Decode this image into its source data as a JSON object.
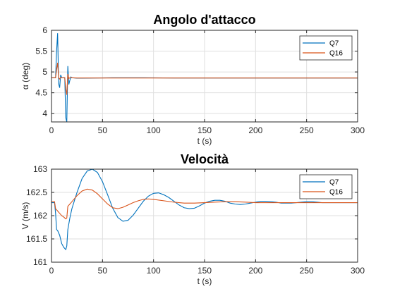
{
  "chart_data": [
    {
      "type": "line",
      "title": "Angolo d'attacco",
      "xlabel": "t (s)",
      "ylabel": "α (deg)",
      "xlim": [
        0,
        300
      ],
      "ylim": [
        3.8,
        6
      ],
      "xticks": [
        0,
        50,
        100,
        150,
        200,
        250,
        300
      ],
      "yticks": [
        4,
        4.5,
        5,
        5.5,
        6
      ],
      "ytick_labels": [
        "4",
        "4.5",
        "5",
        "5.5",
        "6"
      ],
      "grid": true,
      "legend": "top-right",
      "series": [
        {
          "name": "Q7",
          "color": "#0072BD",
          "x": [
            0,
            4,
            5,
            6,
            7,
            8,
            9,
            10,
            11,
            13,
            14,
            15,
            16,
            17,
            18,
            19,
            20,
            25,
            30,
            60,
            90,
            120,
            300
          ],
          "y": [
            4.86,
            4.86,
            5.5,
            5.93,
            4.72,
            4.62,
            4.93,
            4.86,
            4.86,
            4.86,
            3.9,
            3.8,
            5.14,
            4.7,
            4.8,
            4.88,
            4.86,
            4.85,
            4.85,
            4.86,
            4.86,
            4.855,
            4.855
          ]
        },
        {
          "name": "Q16",
          "color": "#D95319",
          "x": [
            0,
            4,
            5,
            6,
            7,
            8,
            9,
            10,
            13,
            14,
            15,
            16,
            17,
            18,
            20,
            25,
            300
          ],
          "y": [
            4.86,
            4.86,
            5.05,
            5.22,
            4.86,
            4.83,
            4.87,
            4.86,
            4.86,
            4.6,
            4.45,
            4.95,
            4.84,
            4.86,
            4.86,
            4.855,
            4.855
          ]
        }
      ]
    },
    {
      "type": "line",
      "title": "Velocità",
      "xlabel": "t (s)",
      "ylabel": "V (m/s)",
      "xlim": [
        0,
        300
      ],
      "ylim": [
        161,
        163
      ],
      "xticks": [
        0,
        50,
        100,
        150,
        200,
        250,
        300
      ],
      "yticks": [
        161,
        161.5,
        162,
        162.5,
        163
      ],
      "ytick_labels": [
        "161",
        "161.5",
        "162",
        "162.5",
        "163"
      ],
      "grid": true,
      "legend": "top-right",
      "series": [
        {
          "name": "Q7",
          "color": "#0072BD",
          "x": [
            0,
            3,
            4,
            5,
            6,
            8,
            10,
            12,
            14,
            15,
            16,
            18,
            20,
            25,
            30,
            35,
            40,
            45,
            50,
            55,
            60,
            65,
            70,
            75,
            80,
            85,
            90,
            95,
            100,
            105,
            110,
            115,
            120,
            125,
            130,
            135,
            140,
            145,
            150,
            155,
            160,
            165,
            170,
            175,
            180,
            185,
            190,
            195,
            200,
            205,
            210,
            215,
            220,
            225,
            230,
            235,
            240,
            245,
            250,
            255,
            260,
            265,
            270,
            280,
            290,
            300
          ],
          "y": [
            162.28,
            162.28,
            162.05,
            161.7,
            161.68,
            161.58,
            161.4,
            161.32,
            161.27,
            161.35,
            161.7,
            161.95,
            162.15,
            162.5,
            162.8,
            162.96,
            163.0,
            162.93,
            162.73,
            162.45,
            162.16,
            161.96,
            161.88,
            161.9,
            162.01,
            162.16,
            162.31,
            162.42,
            162.48,
            162.49,
            162.45,
            162.39,
            162.31,
            162.23,
            162.17,
            162.15,
            162.16,
            162.21,
            162.27,
            162.31,
            162.33,
            162.33,
            162.31,
            162.27,
            162.25,
            162.24,
            162.25,
            162.27,
            162.29,
            162.31,
            162.31,
            162.3,
            162.29,
            162.27,
            162.27,
            162.27,
            162.28,
            162.29,
            162.3,
            162.3,
            162.29,
            162.28,
            162.28,
            162.28,
            162.28,
            162.28
          ]
        },
        {
          "name": "Q16",
          "color": "#D95319",
          "x": [
            0,
            3,
            4,
            6,
            8,
            10,
            12,
            14,
            15,
            16,
            18,
            20,
            25,
            30,
            35,
            40,
            45,
            50,
            55,
            60,
            65,
            70,
            75,
            80,
            85,
            90,
            95,
            100,
            110,
            120,
            130,
            140,
            150,
            160,
            170,
            180,
            190,
            200,
            220,
            240,
            260,
            280,
            300
          ],
          "y": [
            162.3,
            162.3,
            162.15,
            162.1,
            162.05,
            162.0,
            161.97,
            161.93,
            161.95,
            162.2,
            162.25,
            162.3,
            162.43,
            162.53,
            162.57,
            162.55,
            162.47,
            162.36,
            162.25,
            162.17,
            162.15,
            162.18,
            162.23,
            162.28,
            162.32,
            162.35,
            162.36,
            162.35,
            162.32,
            162.29,
            162.27,
            162.27,
            162.28,
            162.29,
            162.3,
            162.3,
            162.29,
            162.28,
            162.28,
            162.28,
            162.28,
            162.28,
            162.28
          ]
        }
      ]
    }
  ]
}
